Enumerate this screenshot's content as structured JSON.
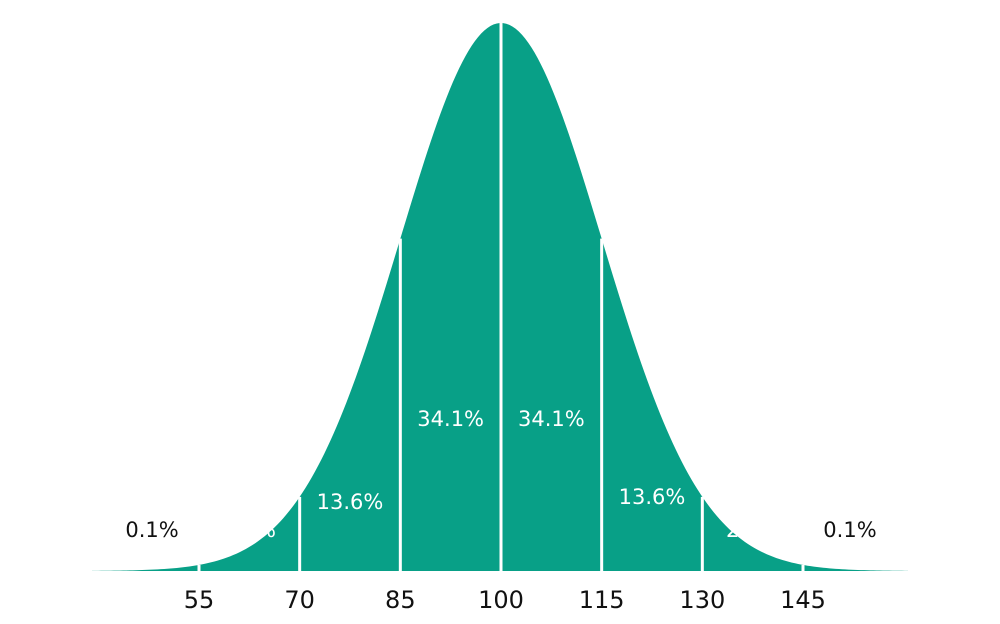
{
  "chart_data": {
    "type": "area",
    "title": "",
    "xlabel": "",
    "ylabel": "",
    "distribution": "normal",
    "mean": 100,
    "sd": 15,
    "xlim": [
      42,
      158
    ],
    "x_ticks": [
      "55",
      "70",
      "85",
      "100",
      "115",
      "130",
      "145"
    ],
    "dividers": [
      55,
      70,
      85,
      100,
      115,
      130,
      145
    ],
    "segments": [
      {
        "label": "0.1%",
        "x": 48
      },
      {
        "label": "2.1%",
        "x": 62.5
      },
      {
        "label": "13.6%",
        "x": 77.5
      },
      {
        "label": "34.1%",
        "x": 92.5
      },
      {
        "label": "34.1%",
        "x": 107.5
      },
      {
        "label": "13.6%",
        "x": 122.5
      },
      {
        "label": "2.1%",
        "x": 137.5
      },
      {
        "label": "0.1%",
        "x": 152
      }
    ],
    "colors": {
      "fill": "#08A087",
      "divider": "#ffffff",
      "label_inside": "#ffffff",
      "label_outside": "#111111",
      "tick_text": "#111111"
    }
  }
}
